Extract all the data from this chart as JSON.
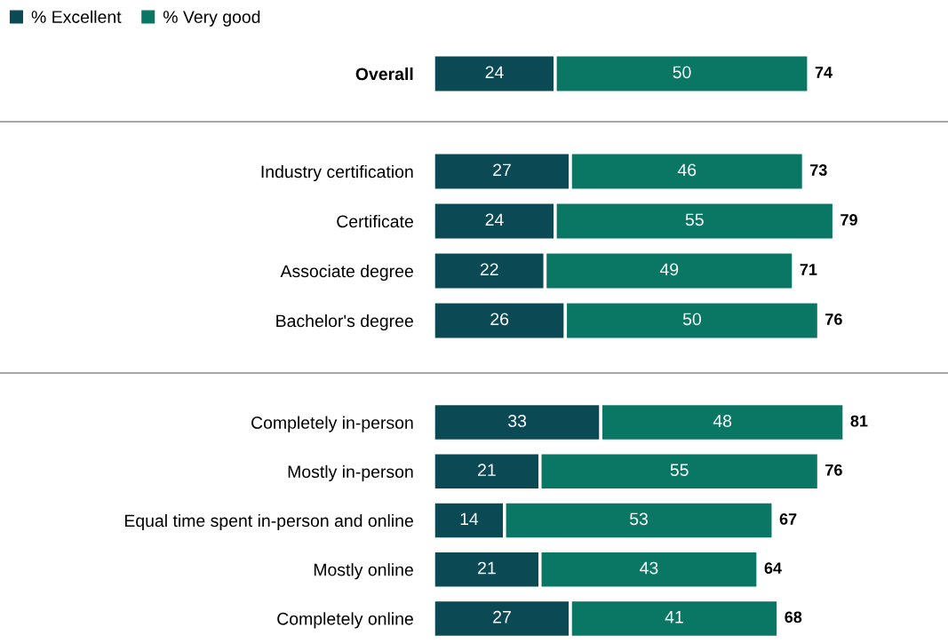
{
  "chart_data": [
    {
      "type": "bar",
      "orientation": "horizontal",
      "stacked": true,
      "categories": [
        "Overall"
      ],
      "legend": "top left",
      "data_labels": true,
      "tick_labels": "y",
      "series": [
        {
          "name": "% Excellent",
          "color": "#0b4a55",
          "values": [
            24
          ]
        },
        {
          "name": "% Very good",
          "color": "#0a7765",
          "values": [
            50
          ]
        }
      ],
      "totals": [
        "74"
      ]
    },
    {
      "type": "bar",
      "orientation": "horizontal",
      "stacked": true,
      "categories": [
        "Industry certification",
        "Certificate",
        "Associate degree",
        "Bachelor's degree"
      ],
      "data_labels": true,
      "tick_labels": "y",
      "series": [
        {
          "color": "#0b4a55",
          "values": [
            27,
            24,
            22,
            26
          ]
        },
        {
          "color": "#0a7765",
          "values": [
            46,
            55,
            49,
            50
          ]
        }
      ],
      "totals": [
        "73",
        "79",
        "71",
        "76"
      ]
    },
    {
      "type": "bar",
      "orientation": "horizontal",
      "stacked": true,
      "categories": [
        "Completely in-person",
        "Mostly in-person",
        "Equal time spent in-person and online",
        "Mostly online",
        "Completely online"
      ],
      "data_labels": true,
      "tick_labels": "y",
      "series": [
        {
          "color": "#0b4a55",
          "values": [
            33,
            21,
            14,
            21,
            27
          ]
        },
        {
          "color": "#0a7765",
          "values": [
            48,
            55,
            53,
            43,
            41
          ]
        }
      ],
      "totals": [
        "81",
        "76",
        "67",
        "64",
        "68"
      ]
    }
  ]
}
